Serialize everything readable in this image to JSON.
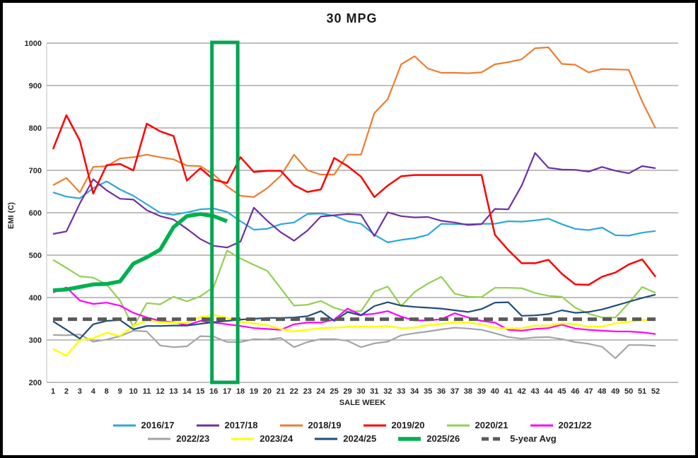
{
  "chart_data": {
    "type": "line",
    "title": "30 MPG",
    "xlabel": "SALE WEEK",
    "ylabel": "EMI (C)",
    "ylim": [
      200,
      1000
    ],
    "yticks": [
      200,
      300,
      400,
      500,
      600,
      700,
      800,
      900,
      1000
    ],
    "grid": true,
    "legend_position": "bottom",
    "categories": [
      "1",
      "2",
      "3",
      "4",
      "8",
      "9",
      "10",
      "11",
      "12",
      "13",
      "14",
      "15",
      "16",
      "17",
      "18",
      "19",
      "20",
      "21",
      "22",
      "23",
      "24",
      "25",
      "29",
      "30",
      "31",
      "32",
      "33",
      "34",
      "35",
      "36",
      "37",
      "38",
      "39",
      "40",
      "41",
      "42",
      "43",
      "44",
      "45",
      "46",
      "47",
      "48",
      "49",
      "50",
      "51",
      "52"
    ],
    "highlight_box": {
      "weeks": [
        "16",
        "17"
      ],
      "color": "#00A651",
      "description": "green rectangle highlighting sale weeks 16-17 across full plot height"
    },
    "series": [
      {
        "name": "2016/17",
        "color": "#2BA7DE",
        "width": 2.2,
        "dash": "",
        "values": [
          648,
          638,
          634,
          658,
          674,
          655,
          640,
          620,
          600,
          595,
          601,
          608,
          610,
          602,
          580,
          560,
          562,
          573,
          577,
          597,
          598,
          593,
          580,
          574,
          548,
          530,
          536,
          540,
          548,
          574,
          573,
          573,
          574,
          574,
          580,
          579,
          582,
          586,
          573,
          562,
          559,
          565,
          547,
          546,
          553,
          557
        ]
      },
      {
        "name": "2017/18",
        "color": "#7030A0",
        "width": 2.2,
        "dash": "",
        "values": [
          550,
          556,
          622,
          679,
          653,
          633,
          631,
          606,
          592,
          584,
          562,
          538,
          522,
          518,
          532,
          612,
          581,
          554,
          534,
          558,
          591,
          594,
          597,
          595,
          545,
          601,
          592,
          589,
          590,
          581,
          577,
          571,
          573,
          609,
          608,
          664,
          741,
          706,
          702,
          701,
          697,
          708,
          699,
          693,
          710,
          705
        ]
      },
      {
        "name": "2018/19",
        "color": "#ED7D31",
        "width": 2.2,
        "dash": "",
        "values": [
          665,
          682,
          648,
          708,
          710,
          728,
          731,
          737,
          731,
          726,
          711,
          710,
          690,
          662,
          640,
          637,
          658,
          687,
          737,
          700,
          690,
          690,
          737,
          737,
          835,
          868,
          950,
          969,
          940,
          930,
          930,
          929,
          931,
          950,
          955,
          962,
          988,
          990,
          951,
          949,
          931,
          939,
          938,
          937,
          862,
          799
        ]
      },
      {
        "name": "2019/20",
        "color": "#FF0000",
        "width": 2.5,
        "dash": "",
        "values": [
          750,
          830,
          770,
          645,
          712,
          715,
          700,
          810,
          792,
          781,
          676,
          705,
          678,
          670,
          731,
          696,
          699,
          699,
          665,
          649,
          655,
          729,
          710,
          685,
          637,
          664,
          686,
          689,
          689,
          689,
          689,
          689,
          689,
          548,
          512,
          481,
          481,
          489,
          456,
          431,
          430,
          449,
          459,
          478,
          490,
          449
        ]
      },
      {
        "name": "2020/21",
        "color": "#92D050",
        "width": 2.2,
        "dash": "",
        "values": [
          489,
          470,
          450,
          447,
          431,
          393,
          331,
          387,
          384,
          402,
          391,
          403,
          425,
          511,
          492,
          477,
          463,
          422,
          381,
          383,
          392,
          376,
          367,
          368,
          414,
          426,
          380,
          413,
          433,
          449,
          409,
          402,
          401,
          423,
          423,
          422,
          411,
          404,
          402,
          376,
          362,
          353,
          353,
          387,
          425,
          411
        ]
      },
      {
        "name": "2021/22",
        "color": "#FF00FF",
        "width": 2.2,
        "dash": "",
        "values": [
          412,
          424,
          393,
          385,
          388,
          381,
          364,
          353,
          345,
          342,
          335,
          345,
          341,
          337,
          333,
          328,
          326,
          324,
          337,
          341,
          341,
          348,
          374,
          359,
          362,
          368,
          355,
          346,
          346,
          349,
          363,
          353,
          345,
          341,
          324,
          322,
          326,
          328,
          336,
          327,
          324,
          322,
          320,
          320,
          318,
          314
        ]
      },
      {
        "name": "2022/23",
        "color": "#A5A5A5",
        "width": 2.2,
        "dash": "",
        "values": [
          312,
          311,
          313,
          296,
          301,
          309,
          322,
          320,
          287,
          283,
          285,
          309,
          308,
          295,
          295,
          302,
          301,
          305,
          283,
          295,
          302,
          302,
          298,
          283,
          292,
          296,
          311,
          316,
          320,
          325,
          329,
          327,
          324,
          316,
          307,
          303,
          306,
          307,
          302,
          295,
          291,
          284,
          257,
          288,
          288,
          286
        ]
      },
      {
        "name": "2023/24",
        "color": "#FFFF00",
        "width": 2.5,
        "dash": "",
        "values": [
          279,
          263,
          300,
          304,
          317,
          310,
          333,
          346,
          342,
          341,
          340,
          354,
          359,
          352,
          343,
          339,
          335,
          326,
          320,
          324,
          328,
          329,
          331,
          332,
          331,
          333,
          328,
          329,
          335,
          338,
          341,
          341,
          337,
          329,
          327,
          328,
          334,
          334,
          339,
          337,
          331,
          332,
          339,
          343,
          347,
          348
        ]
      },
      {
        "name": "2024/25",
        "color": "#1F4E79",
        "width": 2.2,
        "dash": "",
        "values": [
          344,
          324,
          303,
          337,
          345,
          347,
          325,
          333,
          333,
          334,
          334,
          338,
          342,
          345,
          348,
          350,
          352,
          352,
          353,
          356,
          368,
          345,
          366,
          358,
          380,
          389,
          381,
          378,
          376,
          374,
          370,
          366,
          373,
          388,
          389,
          357,
          358,
          361,
          370,
          364,
          366,
          372,
          381,
          390,
          399,
          407
        ]
      },
      {
        "name": "2025/26",
        "color": "#00B050",
        "width": 5.5,
        "dash": "",
        "values": [
          417,
          419,
          425,
          431,
          432,
          438,
          480,
          495,
          513,
          566,
          592,
          597,
          592,
          580
        ]
      },
      {
        "name": "5-year Avg",
        "color": "#595959",
        "width": 5,
        "dash": "13 8",
        "values": [
          349,
          349,
          349,
          349,
          349,
          349,
          349,
          349,
          349,
          349,
          349,
          349,
          349,
          349,
          349,
          349,
          349,
          349,
          349,
          349,
          349,
          349,
          349,
          349,
          349,
          349,
          349,
          349,
          349,
          349,
          349,
          349,
          349,
          349,
          349,
          349,
          349,
          349,
          349,
          349,
          349,
          349,
          349,
          349,
          349,
          349
        ]
      }
    ]
  }
}
